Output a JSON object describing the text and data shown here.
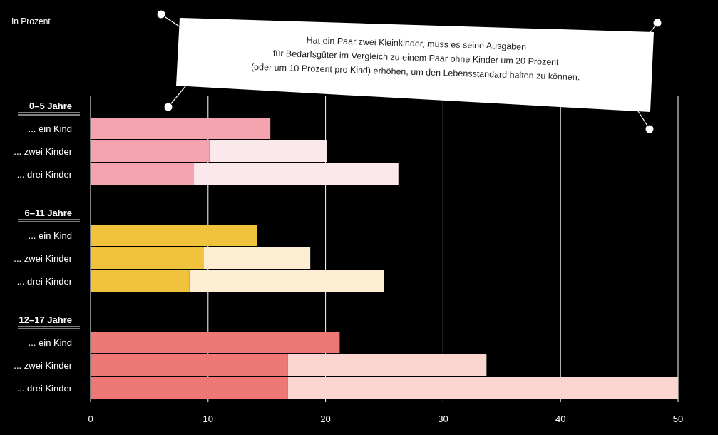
{
  "chart_data": {
    "type": "bar",
    "orientation": "horizontal",
    "stacked": true,
    "annotations": [
      "In Prozent",
      "Hat ein Paar zwei Kleinkinder, muss es seine Ausgaben\nfür Bedarfsgüter im Vergleich zu einem Paar ohne Kinder um 20 Prozent\n(oder um 10 Prozent pro Kind) erhöhen, um den Lebensstandard halten zu können."
    ],
    "categories": [
      "0–5 Jahre",
      "... ein Kind",
      "... zwei Kinder",
      "... drei Kinder",
      "6–11 Jahre",
      "... ein Kind",
      "... zwei Kinder",
      "... drei Kinder",
      "12–17 Jahre",
      "... ein Kind",
      "... zwei Kinder",
      "... drei Kinder"
    ],
    "series": [
      {
        "colors": [
          null,
          "#f4a3af",
          "#f4a3af",
          "#f4a3af",
          null,
          "#f1c23c",
          "#f1c23c",
          "#f1c23c",
          null,
          "#ee7876",
          "#ee7876",
          "#ee7876"
        ],
        "values": [
          null,
          15.3,
          10.1,
          8.8,
          null,
          14.2,
          9.6,
          8.4,
          null,
          21.2,
          16.8,
          16.8
        ]
      },
      {
        "colors": [
          null,
          null,
          "#fbe8ea",
          "#fbe8ea",
          null,
          null,
          "#fdedd2",
          "#fdedd2",
          null,
          null,
          "#fbd5d0",
          "#fbd5d0"
        ],
        "values": [
          null,
          null,
          10,
          17.4,
          null,
          null,
          9.1,
          16.6,
          null,
          null,
          16.9,
          33.2
        ]
      }
    ],
    "xlim": [
      0,
      50
    ],
    "xticks": [
      0,
      10,
      20,
      30,
      40,
      50
    ],
    "grid": "x"
  }
}
